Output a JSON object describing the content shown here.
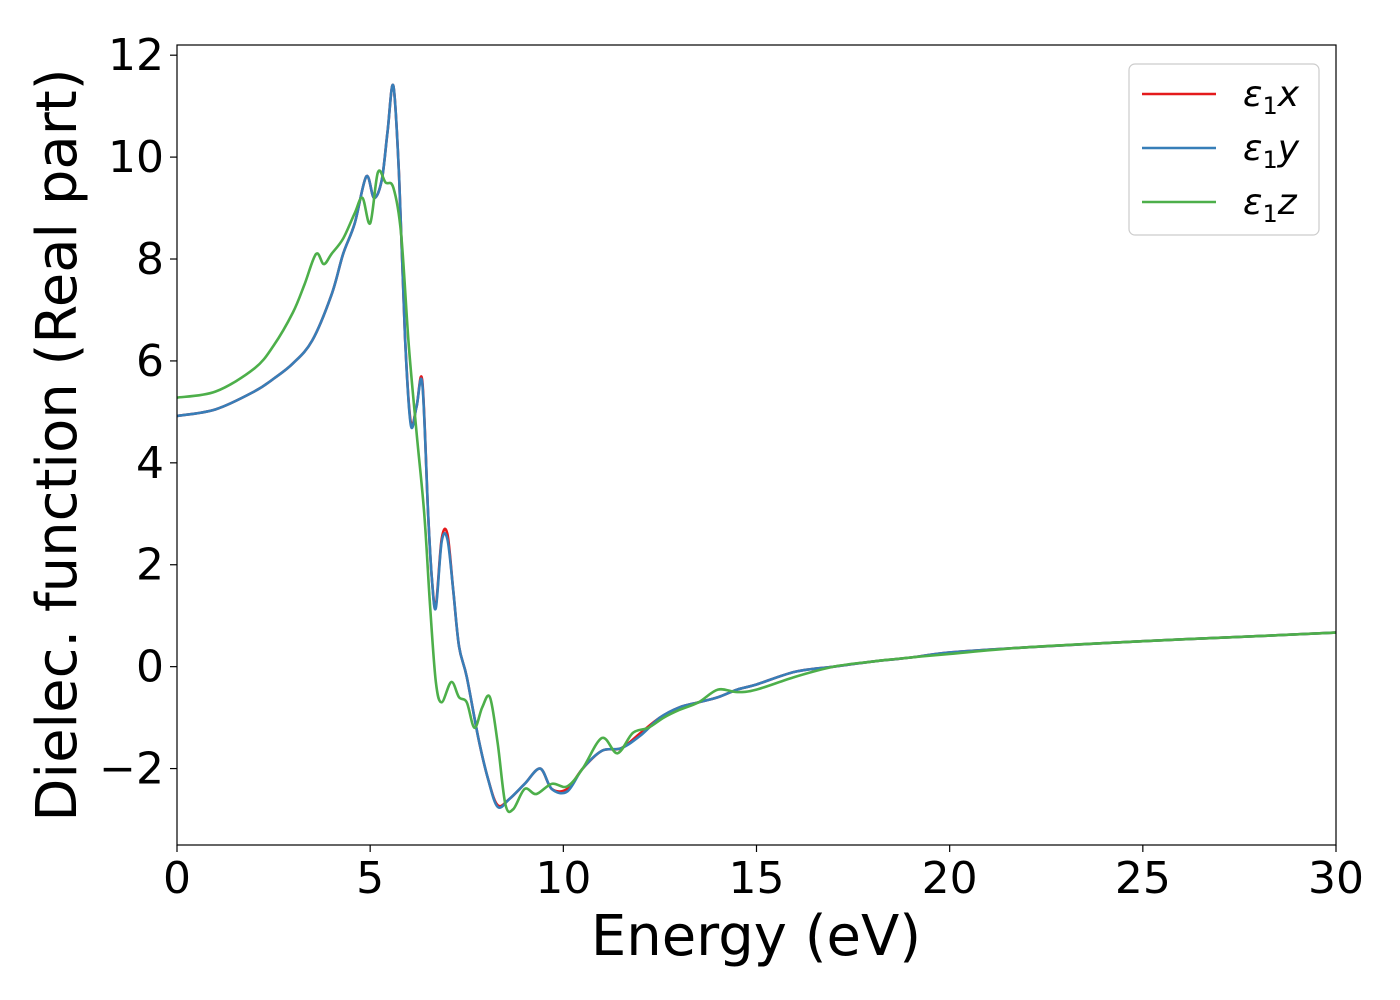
{
  "chart_data": {
    "type": "line",
    "xlabel": "Energy (eV)",
    "ylabel": "Dielec. function (Real part)",
    "xlim": [
      0,
      30
    ],
    "ylim": [
      -3.5,
      12.2
    ],
    "xticks": [
      0,
      5,
      10,
      15,
      20,
      25,
      30
    ],
    "yticks": [
      -2,
      0,
      2,
      4,
      6,
      8,
      10,
      12
    ],
    "xtick_labels": [
      "0",
      "5",
      "10",
      "15",
      "20",
      "25",
      "30"
    ],
    "ytick_labels": [
      "−2",
      "0",
      "2",
      "4",
      "6",
      "8",
      "10",
      "12"
    ],
    "grid": false,
    "legend_position": "top-right",
    "series": [
      {
        "name": "ε1x",
        "label_base": "ε",
        "label_sub": "1",
        "label_var": "x",
        "color": "#e41a1c",
        "x": [
          0,
          1,
          2,
          2.5,
          3,
          3.5,
          4,
          4.3,
          4.6,
          4.9,
          5.1,
          5.3,
          5.45,
          5.6,
          5.75,
          5.9,
          6.05,
          6.2,
          6.35,
          6.5,
          6.6,
          6.7,
          6.85,
          7.0,
          7.15,
          7.3,
          7.5,
          7.8,
          8.05,
          8.3,
          8.6,
          9.0,
          9.4,
          9.7,
          10.1,
          10.5,
          11.0,
          11.5,
          12.0,
          12.5,
          13.0,
          13.5,
          14.0,
          14.5,
          15.0,
          16.0,
          17.0,
          18.0,
          19.0,
          20.0,
          22.0,
          25.0,
          28.0,
          30.0
        ],
        "values": [
          4.92,
          5.05,
          5.4,
          5.65,
          5.95,
          6.4,
          7.3,
          8.1,
          8.7,
          9.62,
          9.2,
          9.55,
          10.5,
          11.4,
          9.6,
          6.5,
          4.8,
          5.1,
          5.6,
          3.0,
          1.7,
          1.2,
          2.5,
          2.6,
          1.5,
          0.4,
          -0.2,
          -1.4,
          -2.2,
          -2.72,
          -2.6,
          -2.3,
          -2.0,
          -2.4,
          -2.4,
          -2.0,
          -1.65,
          -1.6,
          -1.3,
          -1.0,
          -0.8,
          -0.7,
          -0.6,
          -0.45,
          -0.35,
          -0.1,
          0.0,
          0.1,
          0.18,
          0.28,
          0.38,
          0.5,
          0.6,
          0.67
        ]
      },
      {
        "name": "ε1y",
        "label_base": "ε",
        "label_sub": "1",
        "label_var": "y",
        "color": "#377eb8",
        "x": [
          0,
          1,
          2,
          2.5,
          3,
          3.5,
          4,
          4.3,
          4.6,
          4.9,
          5.1,
          5.3,
          5.45,
          5.6,
          5.75,
          5.9,
          6.05,
          6.2,
          6.35,
          6.5,
          6.6,
          6.7,
          6.85,
          7.0,
          7.15,
          7.3,
          7.5,
          7.8,
          8.05,
          8.3,
          8.6,
          9.0,
          9.4,
          9.7,
          10.1,
          10.5,
          11.0,
          11.5,
          12.0,
          12.5,
          13.0,
          13.5,
          14.0,
          14.5,
          15.0,
          16.0,
          17.0,
          18.0,
          19.0,
          20.0,
          22.0,
          25.0,
          28.0,
          30.0
        ],
        "values": [
          4.92,
          5.05,
          5.4,
          5.65,
          5.95,
          6.4,
          7.3,
          8.1,
          8.7,
          9.62,
          9.2,
          9.55,
          10.5,
          11.4,
          9.6,
          6.5,
          4.75,
          5.1,
          5.55,
          3.0,
          1.7,
          1.15,
          2.45,
          2.5,
          1.5,
          0.4,
          -0.2,
          -1.4,
          -2.2,
          -2.75,
          -2.6,
          -2.3,
          -2.0,
          -2.4,
          -2.45,
          -2.0,
          -1.65,
          -1.6,
          -1.35,
          -1.0,
          -0.8,
          -0.7,
          -0.6,
          -0.45,
          -0.35,
          -0.1,
          0.0,
          0.1,
          0.18,
          0.28,
          0.38,
          0.5,
          0.6,
          0.67
        ]
      },
      {
        "name": "ε1z",
        "label_base": "ε",
        "label_sub": "1",
        "label_var": "z",
        "color": "#4daf4a",
        "x": [
          0,
          1,
          2,
          2.5,
          3,
          3.3,
          3.6,
          3.8,
          4.0,
          4.3,
          4.6,
          4.8,
          5.0,
          5.2,
          5.4,
          5.6,
          5.8,
          6.0,
          6.2,
          6.4,
          6.55,
          6.7,
          6.85,
          7.1,
          7.3,
          7.5,
          7.7,
          7.9,
          8.1,
          8.3,
          8.5,
          8.7,
          9.0,
          9.3,
          9.7,
          10.1,
          10.5,
          11.0,
          11.4,
          11.8,
          12.2,
          12.6,
          13.0,
          13.5,
          14.0,
          14.5,
          15.0,
          16.0,
          17.0,
          18.0,
          19.0,
          20.0,
          22.0,
          25.0,
          28.0,
          30.0
        ],
        "values": [
          5.28,
          5.4,
          5.85,
          6.3,
          6.95,
          7.5,
          8.1,
          7.9,
          8.1,
          8.4,
          8.9,
          9.2,
          8.7,
          9.7,
          9.5,
          9.4,
          8.5,
          6.3,
          4.6,
          3.0,
          1.2,
          -0.3,
          -0.7,
          -0.3,
          -0.6,
          -0.7,
          -1.2,
          -0.8,
          -0.6,
          -1.5,
          -2.7,
          -2.8,
          -2.4,
          -2.5,
          -2.3,
          -2.35,
          -2.0,
          -1.4,
          -1.7,
          -1.3,
          -1.2,
          -1.0,
          -0.85,
          -0.7,
          -0.45,
          -0.5,
          -0.45,
          -0.2,
          0.0,
          0.1,
          0.18,
          0.25,
          0.38,
          0.5,
          0.6,
          0.67
        ]
      }
    ]
  }
}
